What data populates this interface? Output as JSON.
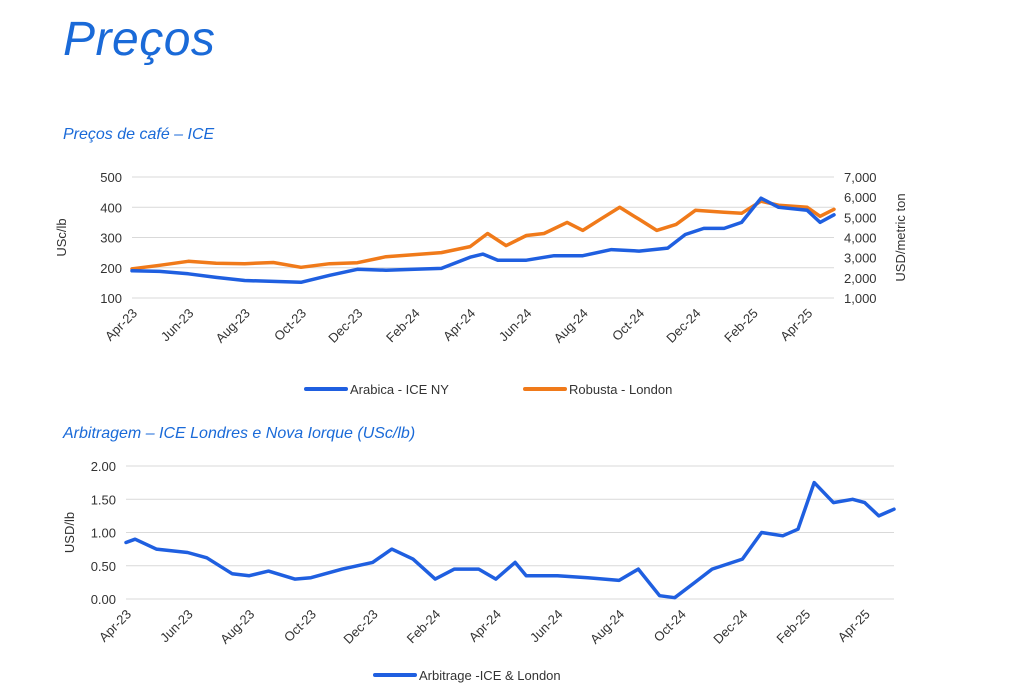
{
  "page": {
    "title": "Preços"
  },
  "colors": {
    "title": "#1a6ad8",
    "arabica": "#1f5fe0",
    "robusta": "#f07a1a",
    "arbitrage": "#1f5fe0",
    "grid": "#d9d9d9"
  },
  "chart_data": [
    {
      "type": "line",
      "title": "Preços de café – ICE",
      "ylabel": "USc/lb",
      "y2label": "USD/metric ton",
      "ylim": [
        100,
        500
      ],
      "y2lim": [
        1000,
        7000
      ],
      "yticks": [
        "100",
        "200",
        "300",
        "400",
        "500"
      ],
      "y2ticks": [
        "1,000",
        "2,000",
        "3,000",
        "4,000",
        "5,000",
        "6,000",
        "7,000"
      ],
      "xticks": [
        "Apr-23",
        "Jun-23",
        "Aug-23",
        "Oct-23",
        "Dec-23",
        "Feb-24",
        "Apr-24",
        "Jun-24",
        "Aug-24",
        "Oct-24",
        "Dec-24",
        "Feb-25",
        "Apr-25"
      ],
      "grid": true,
      "legend": "bottom",
      "series": [
        {
          "name": "Arabica - ICE NY",
          "axis": "left",
          "x": [
            "2023-04-01",
            "2023-05-01",
            "2023-06-01",
            "2023-07-01",
            "2023-08-01",
            "2023-09-01",
            "2023-10-01",
            "2023-11-01",
            "2023-12-01",
            "2024-01-01",
            "2024-02-01",
            "2024-03-01",
            "2024-04-01",
            "2024-04-15",
            "2024-05-01",
            "2024-06-01",
            "2024-07-01",
            "2024-08-01",
            "2024-09-01",
            "2024-10-01",
            "2024-11-01",
            "2024-11-20",
            "2024-12-10",
            "2025-01-01",
            "2025-01-20",
            "2025-02-10",
            "2025-03-01",
            "2025-04-01",
            "2025-04-15",
            "2025-04-30"
          ],
          "values": [
            190,
            188,
            180,
            168,
            158,
            155,
            152,
            175,
            195,
            192,
            195,
            198,
            235,
            245,
            225,
            225,
            240,
            240,
            260,
            255,
            265,
            310,
            330,
            330,
            350,
            430,
            400,
            390,
            350,
            375
          ]
        },
        {
          "name": "Robusta - London",
          "axis": "right",
          "x": [
            "2023-04-01",
            "2023-05-01",
            "2023-06-01",
            "2023-07-01",
            "2023-08-01",
            "2023-09-01",
            "2023-10-01",
            "2023-11-01",
            "2023-12-01",
            "2024-01-01",
            "2024-02-01",
            "2024-03-01",
            "2024-04-01",
            "2024-04-20",
            "2024-05-10",
            "2024-06-01",
            "2024-06-20",
            "2024-07-15",
            "2024-08-01",
            "2024-08-20",
            "2024-09-10",
            "2024-10-01",
            "2024-10-20",
            "2024-11-10",
            "2024-12-01",
            "2025-01-01",
            "2025-01-20",
            "2025-02-10",
            "2025-03-01",
            "2025-04-01",
            "2025-04-15",
            "2025-04-30"
          ],
          "values": [
            2450,
            2620,
            2820,
            2720,
            2700,
            2760,
            2520,
            2700,
            2750,
            3050,
            3150,
            3250,
            3550,
            4200,
            3600,
            4100,
            4200,
            4750,
            4350,
            4900,
            5500,
            4900,
            4350,
            4650,
            5350,
            5250,
            5200,
            5800,
            5600,
            5500,
            5050,
            5400
          ]
        }
      ]
    },
    {
      "type": "line",
      "title": "Arbitragem – ICE Londres e Nova Iorque (USc/lb)",
      "ylabel": "USD/lb",
      "ylim": [
        0,
        2
      ],
      "yticks": [
        "0.00",
        "0.50",
        "1.00",
        "1.50",
        "2.00"
      ],
      "xticks": [
        "Apr-23",
        "Jun-23",
        "Aug-23",
        "Oct-23",
        "Dec-23",
        "Feb-24",
        "Apr-24",
        "Jun-24",
        "Aug-24",
        "Oct-24",
        "Dec-24",
        "Feb-25",
        "Apr-25"
      ],
      "grid": true,
      "legend": "bottom",
      "series": [
        {
          "name": "Arbitrage -ICE & London",
          "x": [
            "2023-04-01",
            "2023-04-10",
            "2023-05-01",
            "2023-06-01",
            "2023-06-20",
            "2023-07-15",
            "2023-08-01",
            "2023-08-20",
            "2023-09-15",
            "2023-10-01",
            "2023-11-01",
            "2023-12-01",
            "2023-12-20",
            "2024-01-10",
            "2024-02-01",
            "2024-02-20",
            "2024-03-15",
            "2024-04-01",
            "2024-04-20",
            "2024-05-01",
            "2024-06-01",
            "2024-07-01",
            "2024-08-01",
            "2024-08-20",
            "2024-09-10",
            "2024-09-25",
            "2024-10-15",
            "2024-11-01",
            "2024-12-01",
            "2024-12-20",
            "2025-01-10",
            "2025-01-25",
            "2025-02-10",
            "2025-03-01",
            "2025-03-20",
            "2025-04-01",
            "2025-04-15",
            "2025-04-30"
          ],
          "values": [
            0.85,
            0.9,
            0.75,
            0.7,
            0.62,
            0.38,
            0.35,
            0.42,
            0.3,
            0.32,
            0.45,
            0.55,
            0.75,
            0.6,
            0.3,
            0.45,
            0.45,
            0.3,
            0.55,
            0.35,
            0.35,
            0.32,
            0.28,
            0.45,
            0.05,
            0.02,
            0.25,
            0.45,
            0.6,
            1.0,
            0.95,
            1.05,
            1.75,
            1.45,
            1.5,
            1.45,
            1.25,
            1.35
          ]
        }
      ]
    }
  ]
}
